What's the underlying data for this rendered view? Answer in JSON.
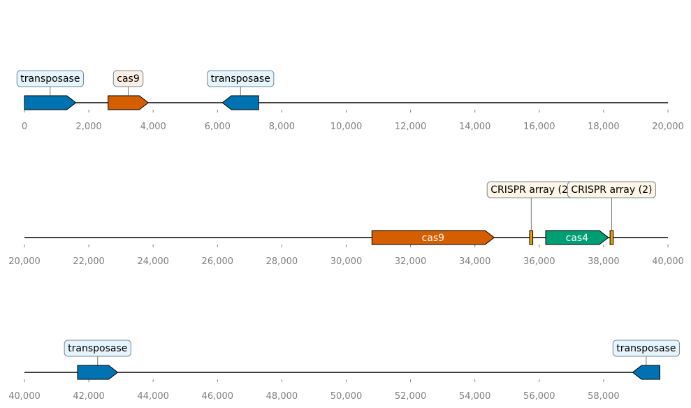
{
  "tracks": [
    {
      "range": [
        0,
        20000
      ],
      "ticks": [
        "0",
        "2,000",
        "4,000",
        "6,000",
        "8,000",
        "10,000",
        "12,000",
        "14,000",
        "16,000",
        "18,000",
        "20,000"
      ],
      "features": [
        {
          "label": "transposase",
          "start": 0,
          "end": 1600,
          "strand": 1,
          "color": "#0072b2",
          "label_box": "#e6f4fb",
          "label_pos": "above"
        },
        {
          "label": "cas9",
          "start": 2600,
          "end": 3850,
          "strand": 1,
          "color": "#d55e00",
          "label_box": "#fbeee5",
          "label_pos": "above"
        },
        {
          "label": "transposase",
          "start": 6150,
          "end": 7280,
          "strand": -1,
          "color": "#0072b2",
          "label_box": "#e6f4fb",
          "label_pos": "above"
        }
      ]
    },
    {
      "range": [
        20000,
        40000
      ],
      "ticks": [
        "20,000",
        "22,000",
        "24,000",
        "26,000",
        "28,000",
        "30,000",
        "32,000",
        "34,000",
        "36,000",
        "38,000",
        "40,000"
      ],
      "features": [
        {
          "label": "cas9",
          "start": 30800,
          "end": 34600,
          "strand": 1,
          "color": "#d55e00",
          "label_pos": "inside"
        },
        {
          "label": "CRISPR array (2)",
          "start": 35700,
          "end": 35800,
          "strand": 0,
          "color": "#e69f00",
          "label_box": "#fdf5e6",
          "label_pos": "above-high"
        },
        {
          "label": "cas4",
          "start": 36200,
          "end": 38150,
          "strand": 1,
          "color": "#009e73",
          "label_pos": "inside"
        },
        {
          "label": "CRISPR array (2)",
          "start": 38200,
          "end": 38300,
          "strand": 0,
          "color": "#e69f00",
          "label_box": "#fdf5e6",
          "label_pos": "above"
        }
      ]
    },
    {
      "range": [
        40000,
        60000
      ],
      "ticks": [
        "40,000",
        "42,000",
        "44,000",
        "46,000",
        "48,000",
        "50,000",
        "52,000",
        "54,000",
        "56,000",
        "58,000"
      ],
      "tick_values": [
        40000,
        42000,
        44000,
        46000,
        48000,
        50000,
        52000,
        54000,
        56000,
        58000
      ],
      "line_end": 59750,
      "features": [
        {
          "label": "transposase",
          "start": 41650,
          "end": 42900,
          "strand": 1,
          "color": "#0072b2",
          "label_box": "#e6f4fb",
          "label_pos": "above"
        },
        {
          "label": "transposase",
          "start": 58900,
          "end": 59750,
          "strand": -1,
          "color": "#0072b2",
          "label_box": "#e6f4fb",
          "label_pos": "above"
        }
      ]
    }
  ]
}
